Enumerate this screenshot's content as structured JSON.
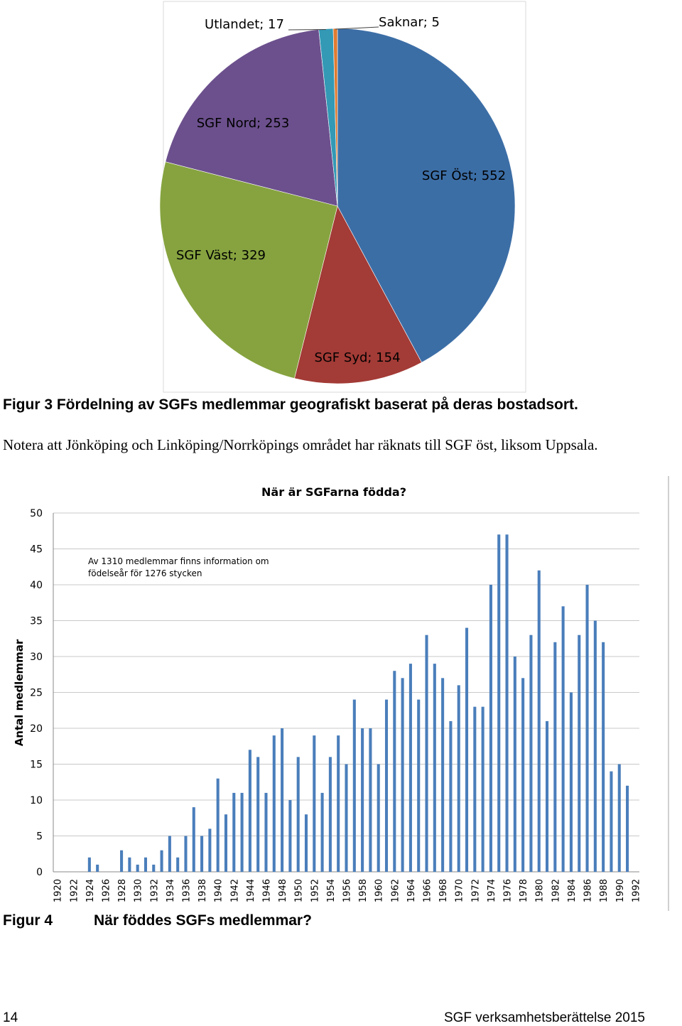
{
  "figure3": {
    "chart_data": {
      "type": "pie",
      "slices": [
        {
          "label": "SGF Öst; 552",
          "name": "SGF Öst",
          "value": 552,
          "color": "#3c6ea6"
        },
        {
          "label": "SGF Syd; 154",
          "name": "SGF Syd",
          "value": 154,
          "color": "#a33b36"
        },
        {
          "label": "SGF Väst; 329",
          "name": "SGF Väst",
          "value": 329,
          "color": "#86a33f"
        },
        {
          "label": "SGF Nord; 253",
          "name": "SGF Nord",
          "value": 253,
          "color": "#6c508d"
        },
        {
          "label": "Utlandet; 17",
          "name": "Utlandet",
          "value": 17,
          "color": "#3399b5"
        },
        {
          "label": "Saknar; 5",
          "name": "Saknar",
          "value": 5,
          "color": "#e07b30"
        }
      ]
    },
    "caption": "Figur 3 Fördelning av SGFs medlemmar geografiskt baserat på deras bostadsort.",
    "note": "Notera att Jönköping och Linköping/Norrköpings området har räknats till SGF öst, liksom Uppsala."
  },
  "figure4": {
    "chart_data": {
      "type": "bar",
      "title": "När är SGFarna födda?",
      "ylabel": "Antal medlemmar",
      "xlabel": "",
      "ylim": [
        0,
        50
      ],
      "yticks": [
        "0",
        "5",
        "10",
        "15",
        "20",
        "25",
        "30",
        "35",
        "40",
        "45",
        "50"
      ],
      "grid": true,
      "annotation": [
        "Av 1310 medlemmar finns information om",
        "födelseår för 1276 stycken"
      ],
      "x_tick_labels": [
        "1920",
        "1922",
        "1924",
        "1926",
        "1928",
        "1930",
        "1932",
        "1934",
        "1936",
        "1938",
        "1940",
        "1942",
        "1944",
        "1946",
        "1948",
        "1950",
        "1952",
        "1954",
        "1956",
        "1958",
        "1960",
        "1962",
        "1964",
        "1966",
        "1968",
        "1970",
        "1972",
        "1974",
        "1976",
        "1978",
        "1980",
        "1982",
        "1984",
        "1986",
        "1988",
        "1990",
        "1992"
      ],
      "years": [
        1920,
        1921,
        1922,
        1923,
        1924,
        1925,
        1926,
        1927,
        1928,
        1929,
        1930,
        1931,
        1932,
        1933,
        1934,
        1935,
        1936,
        1937,
        1938,
        1939,
        1940,
        1941,
        1942,
        1943,
        1944,
        1945,
        1946,
        1947,
        1948,
        1949,
        1950,
        1951,
        1952,
        1953,
        1954,
        1955,
        1956,
        1957,
        1958,
        1959,
        1960,
        1961,
        1962,
        1963,
        1964,
        1965,
        1966,
        1967,
        1968,
        1969,
        1970,
        1971,
        1972,
        1973,
        1974,
        1975,
        1976,
        1977,
        1978,
        1979,
        1980,
        1981,
        1982,
        1983,
        1984,
        1985,
        1986,
        1987,
        1988,
        1989,
        1990,
        1991,
        1992
      ],
      "values": [
        0,
        0,
        0,
        0,
        2,
        1,
        0,
        0,
        3,
        2,
        1,
        2,
        1,
        3,
        5,
        2,
        5,
        9,
        5,
        6,
        13,
        8,
        11,
        11,
        17,
        16,
        11,
        19,
        20,
        10,
        16,
        8,
        19,
        11,
        16,
        19,
        15,
        24,
        20,
        20,
        15,
        24,
        28,
        27,
        29,
        24,
        33,
        29,
        27,
        21,
        26,
        34,
        23,
        23,
        40,
        47,
        47,
        30,
        27,
        33,
        42,
        21,
        32,
        37,
        25,
        33,
        40,
        35,
        32,
        14,
        15,
        12,
        0
      ],
      "bar_color": "#4a7ebb"
    },
    "caption_number": "Figur 4",
    "caption_text": "När föddes SGFs medlemmar?"
  },
  "footer": {
    "page_number": "14",
    "title": "SGF verksamhetsberättelse 2015"
  }
}
